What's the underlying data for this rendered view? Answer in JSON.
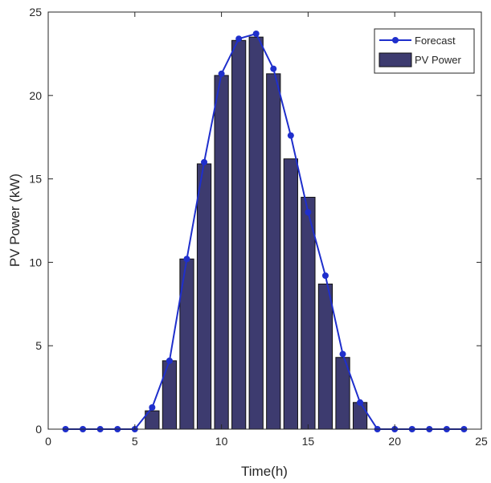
{
  "chart_data": {
    "type": "bar",
    "title": "",
    "xlabel": "Time(h)",
    "ylabel": "PV Power (kW)",
    "xlim": [
      0,
      25
    ],
    "ylim": [
      0,
      25
    ],
    "x_ticks": [
      "0",
      "5",
      "10",
      "15",
      "20",
      "25"
    ],
    "y_ticks": [
      "0",
      "5",
      "10",
      "15",
      "20",
      "25"
    ],
    "grid": false,
    "legend_position": "top-right",
    "x": [
      1,
      2,
      3,
      4,
      5,
      6,
      7,
      8,
      9,
      10,
      11,
      12,
      13,
      14,
      15,
      16,
      17,
      18,
      19,
      20,
      21,
      22,
      23,
      24
    ],
    "series": [
      {
        "name": "Forecast",
        "type": "line",
        "marker": "circle",
        "color": "#1f2fcc",
        "values": [
          0,
          0,
          0,
          0,
          0,
          1.3,
          4.1,
          10.2,
          16.0,
          21.3,
          23.4,
          23.7,
          21.6,
          17.6,
          13.0,
          9.2,
          4.5,
          1.6,
          0,
          0,
          0,
          0,
          0,
          0
        ]
      },
      {
        "name": "PV Power",
        "type": "bar",
        "color": "#3d3b6f",
        "values": [
          0,
          0,
          0,
          0,
          0,
          1.1,
          4.1,
          10.2,
          15.9,
          21.2,
          23.3,
          23.5,
          21.3,
          16.2,
          13.9,
          8.7,
          4.3,
          1.6,
          0,
          0,
          0,
          0,
          0,
          0
        ]
      }
    ]
  }
}
